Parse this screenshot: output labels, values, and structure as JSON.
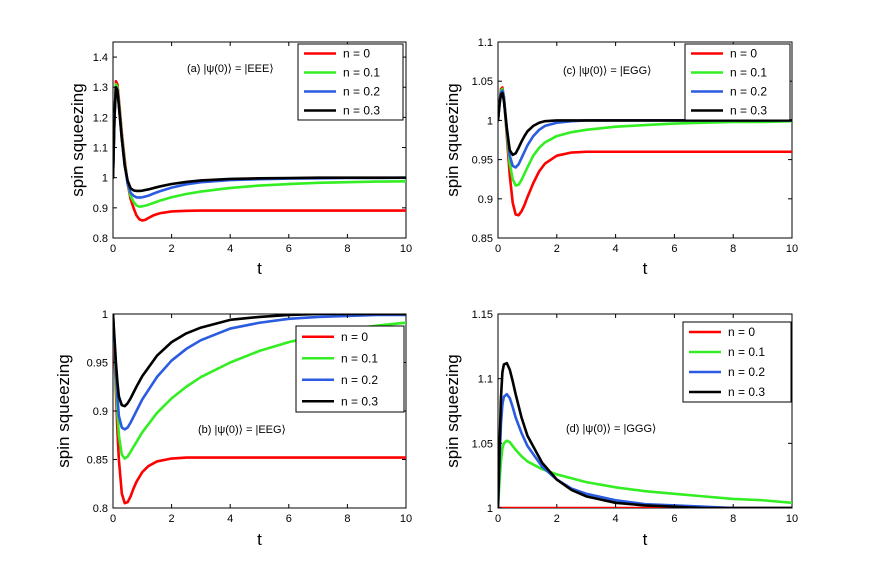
{
  "chart_data": [
    {
      "type": "line",
      "title": "",
      "annotation": "(a) |ψ(0)⟩ = |EEE⟩",
      "xlabel": "t",
      "ylabel": "spin squeezing",
      "xlim": [
        0,
        10
      ],
      "ylim": [
        0.8,
        1.45
      ],
      "xticks": [
        0,
        2,
        4,
        6,
        8,
        10
      ],
      "yticks": [
        0.8,
        0.9,
        1,
        1.1,
        1.2,
        1.3,
        1.4
      ],
      "ytick_labels": [
        "0.8",
        "0.9",
        "1",
        "1.1",
        "1.2",
        "1.3",
        "1.4"
      ],
      "legend_position": "top-right",
      "series": [
        {
          "name": "n = 0",
          "color": "#ff0000",
          "x": [
            0,
            0.05,
            0.1,
            0.15,
            0.2,
            0.3,
            0.4,
            0.5,
            0.6,
            0.7,
            0.8,
            0.9,
            1.0,
            1.1,
            1.2,
            1.4,
            1.6,
            2.0,
            2.5,
            3,
            4,
            5,
            6,
            7,
            8,
            9,
            10
          ],
          "y": [
            1.0,
            1.2,
            1.32,
            1.31,
            1.26,
            1.15,
            1.06,
            0.98,
            0.93,
            0.9,
            0.875,
            0.862,
            0.858,
            0.86,
            0.866,
            0.876,
            0.882,
            0.888,
            0.89,
            0.891,
            0.891,
            0.891,
            0.891,
            0.891,
            0.891,
            0.891,
            0.891
          ]
        },
        {
          "name": "n = 0.1",
          "color": "#33ee22",
          "x": [
            0,
            0.05,
            0.1,
            0.15,
            0.2,
            0.3,
            0.4,
            0.5,
            0.6,
            0.7,
            0.8,
            0.9,
            1.0,
            1.2,
            1.4,
            1.6,
            2.0,
            2.5,
            3,
            4,
            5,
            6,
            7,
            8,
            9,
            10
          ],
          "y": [
            1.0,
            1.2,
            1.31,
            1.3,
            1.25,
            1.14,
            1.05,
            0.98,
            0.94,
            0.92,
            0.908,
            0.904,
            0.905,
            0.91,
            0.917,
            0.924,
            0.935,
            0.946,
            0.954,
            0.966,
            0.974,
            0.979,
            0.983,
            0.985,
            0.987,
            0.988
          ]
        },
        {
          "name": "n = 0.2",
          "color": "#2a5be0",
          "x": [
            0,
            0.05,
            0.1,
            0.15,
            0.2,
            0.3,
            0.4,
            0.5,
            0.6,
            0.7,
            0.8,
            0.9,
            1.0,
            1.2,
            1.4,
            1.6,
            2.0,
            2.5,
            3,
            4,
            5,
            6,
            7,
            8,
            9,
            10
          ],
          "y": [
            1.0,
            1.2,
            1.3,
            1.29,
            1.24,
            1.13,
            1.04,
            0.98,
            0.95,
            0.94,
            0.935,
            0.934,
            0.935,
            0.94,
            0.948,
            0.955,
            0.967,
            0.978,
            0.985,
            0.992,
            0.995,
            0.997,
            0.998,
            0.999,
            0.999,
            1.0
          ]
        },
        {
          "name": "n = 0.3",
          "color": "#000000",
          "x": [
            0,
            0.05,
            0.1,
            0.15,
            0.2,
            0.3,
            0.4,
            0.5,
            0.6,
            0.7,
            0.8,
            0.9,
            1.0,
            1.2,
            1.4,
            1.6,
            2.0,
            2.5,
            3,
            4,
            5,
            6,
            7,
            8,
            9,
            10
          ],
          "y": [
            1.0,
            1.2,
            1.3,
            1.29,
            1.24,
            1.13,
            1.04,
            0.99,
            0.965,
            0.958,
            0.956,
            0.956,
            0.957,
            0.961,
            0.966,
            0.971,
            0.979,
            0.986,
            0.991,
            0.996,
            0.998,
            0.999,
            1.0,
            1.0,
            1.0,
            1.0
          ]
        }
      ]
    },
    {
      "type": "line",
      "title": "",
      "annotation": "(c) |ψ(0)⟩ = |EGG⟩",
      "xlabel": "t",
      "ylabel": "spin squeezing",
      "xlim": [
        0,
        10
      ],
      "ylim": [
        0.85,
        1.1
      ],
      "xticks": [
        0,
        2,
        4,
        6,
        8,
        10
      ],
      "yticks": [
        0.85,
        0.9,
        0.95,
        1,
        1.05,
        1.1
      ],
      "ytick_labels": [
        "0.85",
        "0.9",
        "0.95",
        "1",
        "1.05",
        "1.1"
      ],
      "legend_position": "top-right",
      "series": [
        {
          "name": "n = 0",
          "color": "#ff0000",
          "x": [
            0,
            0.05,
            0.1,
            0.15,
            0.2,
            0.3,
            0.4,
            0.5,
            0.6,
            0.7,
            0.8,
            0.9,
            1.0,
            1.2,
            1.4,
            1.6,
            2.0,
            2.5,
            3,
            4,
            5,
            6,
            7,
            8,
            9,
            10
          ],
          "y": [
            1.0,
            1.02,
            1.04,
            1.042,
            1.03,
            0.98,
            0.93,
            0.895,
            0.88,
            0.879,
            0.884,
            0.892,
            0.902,
            0.92,
            0.935,
            0.945,
            0.955,
            0.959,
            0.96,
            0.96,
            0.96,
            0.96,
            0.96,
            0.96,
            0.96,
            0.96
          ]
        },
        {
          "name": "n = 0.1",
          "color": "#33ee22",
          "x": [
            0,
            0.05,
            0.1,
            0.15,
            0.2,
            0.3,
            0.4,
            0.5,
            0.6,
            0.7,
            0.8,
            0.9,
            1.0,
            1.2,
            1.4,
            1.6,
            2.0,
            2.5,
            3,
            4,
            5,
            6,
            7,
            8,
            9,
            10
          ],
          "y": [
            1.0,
            1.02,
            1.038,
            1.04,
            1.03,
            0.985,
            0.945,
            0.925,
            0.917,
            0.918,
            0.924,
            0.932,
            0.94,
            0.955,
            0.965,
            0.972,
            0.98,
            0.985,
            0.988,
            0.992,
            0.994,
            0.996,
            0.997,
            0.998,
            0.998,
            0.999
          ]
        },
        {
          "name": "n = 0.2",
          "color": "#2a5be0",
          "x": [
            0,
            0.05,
            0.1,
            0.15,
            0.2,
            0.3,
            0.4,
            0.5,
            0.6,
            0.7,
            0.8,
            0.9,
            1.0,
            1.2,
            1.4,
            1.6,
            2.0,
            2.5,
            3,
            4,
            5,
            6,
            7,
            8,
            9,
            10
          ],
          "y": [
            1.0,
            1.02,
            1.036,
            1.038,
            1.03,
            0.99,
            0.955,
            0.942,
            0.94,
            0.944,
            0.952,
            0.96,
            0.968,
            0.98,
            0.988,
            0.993,
            0.997,
            0.999,
            1.0,
            1.0,
            1.0,
            1.0,
            1.0,
            1.0,
            1.0,
            1.0
          ]
        },
        {
          "name": "n = 0.3",
          "color": "#000000",
          "x": [
            0,
            0.05,
            0.1,
            0.15,
            0.2,
            0.3,
            0.4,
            0.5,
            0.6,
            0.7,
            0.8,
            0.9,
            1.0,
            1.2,
            1.4,
            1.6,
            2.0,
            2.5,
            3,
            4,
            5,
            6,
            7,
            8,
            9,
            10
          ],
          "y": [
            1.0,
            1.02,
            1.033,
            1.035,
            1.025,
            0.99,
            0.962,
            0.956,
            0.958,
            0.965,
            0.973,
            0.98,
            0.986,
            0.993,
            0.997,
            0.999,
            1.0,
            1.0,
            1.0,
            1.0,
            1.0,
            1.0,
            1.0,
            1.0,
            1.0,
            1.0
          ]
        }
      ]
    },
    {
      "type": "line",
      "title": "",
      "annotation": "(b) |ψ(0)⟩ = |EEG⟩",
      "xlabel": "t",
      "ylabel": "spin squeezing",
      "xlim": [
        0,
        10
      ],
      "ylim": [
        0.8,
        1.0
      ],
      "xticks": [
        0,
        2,
        4,
        6,
        8,
        10
      ],
      "yticks": [
        0.8,
        0.85,
        0.9,
        0.95,
        1
      ],
      "ytick_labels": [
        "0.8",
        "0.85",
        "0.9",
        "0.95",
        "1"
      ],
      "legend_position": "center-right",
      "series": [
        {
          "name": "n = 0",
          "color": "#ff0000",
          "x": [
            0,
            0.05,
            0.1,
            0.15,
            0.2,
            0.3,
            0.4,
            0.5,
            0.6,
            0.7,
            0.8,
            1.0,
            1.2,
            1.5,
            2.0,
            2.5,
            3,
            4,
            5,
            6,
            7,
            8,
            9,
            10
          ],
          "y": [
            1.0,
            0.96,
            0.92,
            0.88,
            0.85,
            0.815,
            0.805,
            0.806,
            0.812,
            0.82,
            0.827,
            0.837,
            0.843,
            0.848,
            0.851,
            0.852,
            0.852,
            0.852,
            0.852,
            0.852,
            0.852,
            0.852,
            0.852,
            0.852
          ]
        },
        {
          "name": "n = 0.1",
          "color": "#33ee22",
          "x": [
            0,
            0.05,
            0.1,
            0.15,
            0.2,
            0.3,
            0.4,
            0.5,
            0.6,
            0.8,
            1.0,
            1.5,
            2.0,
            2.5,
            3,
            4,
            5,
            6,
            7,
            8,
            9,
            10
          ],
          "y": [
            1.0,
            0.97,
            0.93,
            0.9,
            0.875,
            0.855,
            0.851,
            0.853,
            0.858,
            0.868,
            0.878,
            0.898,
            0.913,
            0.925,
            0.935,
            0.95,
            0.962,
            0.971,
            0.978,
            0.984,
            0.988,
            0.991
          ]
        },
        {
          "name": "n = 0.2",
          "color": "#2a5be0",
          "x": [
            0,
            0.05,
            0.1,
            0.15,
            0.2,
            0.3,
            0.4,
            0.5,
            0.6,
            0.8,
            1.0,
            1.5,
            2.0,
            2.5,
            3,
            4,
            5,
            6,
            7,
            8,
            9,
            10
          ],
          "y": [
            1.0,
            0.97,
            0.94,
            0.915,
            0.895,
            0.883,
            0.881,
            0.883,
            0.888,
            0.9,
            0.912,
            0.935,
            0.952,
            0.964,
            0.973,
            0.985,
            0.991,
            0.995,
            0.997,
            0.998,
            0.999,
            0.999
          ]
        },
        {
          "name": "n = 0.3",
          "color": "#000000",
          "x": [
            0,
            0.05,
            0.1,
            0.15,
            0.2,
            0.3,
            0.4,
            0.5,
            0.6,
            0.8,
            1.0,
            1.5,
            2.0,
            2.5,
            3,
            4,
            5,
            6,
            7,
            8,
            9,
            10
          ],
          "y": [
            1.0,
            0.975,
            0.95,
            0.93,
            0.915,
            0.906,
            0.905,
            0.908,
            0.913,
            0.925,
            0.936,
            0.957,
            0.971,
            0.98,
            0.986,
            0.994,
            0.997,
            0.999,
            1.0,
            1.0,
            1.0,
            1.0
          ]
        }
      ]
    },
    {
      "type": "line",
      "title": "",
      "annotation": "(d) |ψ(0)⟩ = |GGG⟩",
      "xlabel": "t",
      "ylabel": "spin squeezing",
      "xlim": [
        0,
        10
      ],
      "ylim": [
        1.0,
        1.15
      ],
      "xticks": [
        0,
        2,
        4,
        6,
        8,
        10
      ],
      "yticks": [
        1,
        1.05,
        1.1,
        1.15
      ],
      "ytick_labels": [
        "1",
        "1.05",
        "1.1",
        "1.15"
      ],
      "legend_position": "top-right",
      "series": [
        {
          "name": "n = 0",
          "color": "#ff0000",
          "x": [
            0,
            10
          ],
          "y": [
            1.0,
            1.0
          ]
        },
        {
          "name": "n = 0.1",
          "color": "#33ee22",
          "x": [
            0,
            0.05,
            0.1,
            0.15,
            0.2,
            0.3,
            0.4,
            0.5,
            0.6,
            0.8,
            1.0,
            1.5,
            2.0,
            2.5,
            3,
            4,
            5,
            6,
            7,
            8,
            9,
            10
          ],
          "y": [
            1.0,
            1.02,
            1.036,
            1.046,
            1.05,
            1.052,
            1.051,
            1.048,
            1.045,
            1.04,
            1.036,
            1.03,
            1.026,
            1.023,
            1.02,
            1.016,
            1.013,
            1.011,
            1.009,
            1.007,
            1.006,
            1.004
          ]
        },
        {
          "name": "n = 0.2",
          "color": "#2a5be0",
          "x": [
            0,
            0.05,
            0.1,
            0.15,
            0.2,
            0.3,
            0.4,
            0.5,
            0.6,
            0.8,
            1.0,
            1.5,
            2.0,
            2.5,
            3,
            4,
            5,
            6,
            7,
            8,
            9,
            10
          ],
          "y": [
            1.0,
            1.035,
            1.065,
            1.08,
            1.086,
            1.088,
            1.085,
            1.078,
            1.07,
            1.058,
            1.048,
            1.032,
            1.022,
            1.015,
            1.011,
            1.006,
            1.003,
            1.002,
            1.001,
            1.0,
            1.0,
            1.0
          ]
        },
        {
          "name": "n = 0.3",
          "color": "#000000",
          "x": [
            0,
            0.05,
            0.1,
            0.15,
            0.2,
            0.3,
            0.4,
            0.5,
            0.6,
            0.8,
            1.0,
            1.5,
            2.0,
            2.5,
            3,
            4,
            5,
            6,
            7,
            8,
            9,
            10
          ],
          "y": [
            1.0,
            1.045,
            1.085,
            1.105,
            1.111,
            1.112,
            1.107,
            1.098,
            1.088,
            1.07,
            1.056,
            1.035,
            1.022,
            1.014,
            1.009,
            1.004,
            1.002,
            1.001,
            1.0,
            1.0,
            1.0,
            1.0
          ]
        }
      ]
    }
  ]
}
